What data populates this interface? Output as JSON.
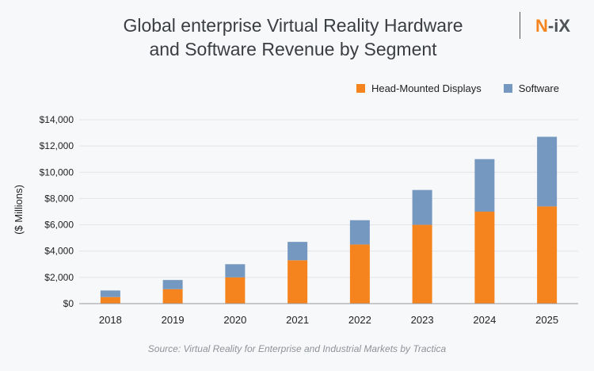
{
  "header": {
    "title_line1": "Global enterprise Virtual Reality Hardware",
    "title_line2": "and Software Revenue by Segment",
    "logo_text": "N-iX"
  },
  "chart_data": {
    "type": "bar",
    "stacked": true,
    "title": "Global enterprise Virtual Reality Hardware and Software Revenue by Segment",
    "xlabel": "",
    "ylabel": "($ Millions)",
    "categories": [
      "2018",
      "2019",
      "2020",
      "2021",
      "2022",
      "2023",
      "2024",
      "2025"
    ],
    "series": [
      {
        "name": "Head-Mounted Displays",
        "color": "#f5841f",
        "values": [
          500,
          1100,
          2000,
          3300,
          4500,
          6000,
          7000,
          7400
        ]
      },
      {
        "name": "Software",
        "color": "#7598c0",
        "values": [
          500,
          700,
          1000,
          1400,
          1850,
          2650,
          4000,
          5300
        ]
      }
    ],
    "ylim": [
      0,
      14000
    ],
    "yticks": [
      "$0",
      "$2,000",
      "$4,000",
      "$6,000",
      "$8,000",
      "$10,000",
      "$12,000",
      "$14,000"
    ],
    "grid": true,
    "legend": "top-right"
  },
  "source": "Source: Virtual Reality for Enterprise and Industrial Markets by Tractica"
}
